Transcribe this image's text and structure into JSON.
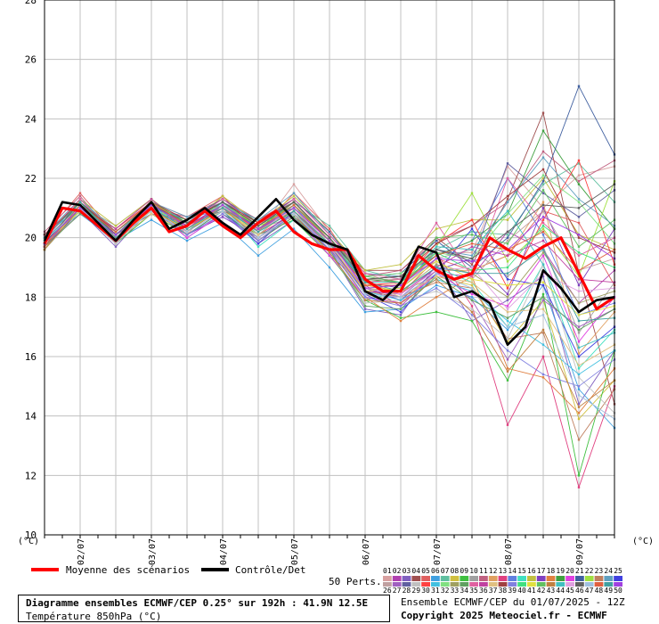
{
  "unit_label": "(°C)",
  "legend": {
    "mean_label": "Moyenne des scénarios",
    "control_label": "Contrôle/Det",
    "perts_label": "50 Perts.",
    "mean_color": "#ff0000",
    "control_color": "#000000"
  },
  "title": {
    "main": "Diagramme ensembles ECMWF/CEP 0.25° sur 192h : 41.9N 12.5E",
    "sub": "Température 850hPa (°C)"
  },
  "run_info": "Ensemble ECMWF/CEP du 01/07/2025 - 12Z",
  "copyright": "Copyright 2025 Meteociel.fr - ECMWF",
  "member_numbers_top": [
    "01",
    "02",
    "03",
    "04",
    "05",
    "06",
    "07",
    "08",
    "09",
    "10",
    "11",
    "12",
    "13",
    "14",
    "15",
    "16",
    "17",
    "18",
    "19",
    "20",
    "21",
    "22",
    "23",
    "24",
    "25"
  ],
  "member_numbers_bottom": [
    "26",
    "27",
    "28",
    "29",
    "30",
    "31",
    "32",
    "33",
    "34",
    "35",
    "36",
    "37",
    "38",
    "39",
    "40",
    "41",
    "42",
    "43",
    "44",
    "45",
    "46",
    "47",
    "48",
    "49",
    "50"
  ],
  "member_colors": [
    "#d8a0a0",
    "#b040b0",
    "#8060c0",
    "#a05050",
    "#e06060",
    "#40a0e0",
    "#60c0a0",
    "#d0c040",
    "#40c040",
    "#a0a0a0",
    "#c06080",
    "#e0a060",
    "#e04080",
    "#6080e0",
    "#40e0c0",
    "#c0c040",
    "#8040c0",
    "#e08040",
    "#40a040",
    "#e040e0",
    "#4060a0",
    "#a0e040",
    "#c08060",
    "#60a0c0",
    "#4040e0",
    "#c0a0a0",
    "#a060c0",
    "#6060a0",
    "#c0c0c0",
    "#ff4040",
    "#40c0e0",
    "#80e080",
    "#a0a060",
    "#60a060",
    "#e060a0",
    "#c040a0",
    "#e0c080",
    "#a04040",
    "#8080e0",
    "#40e080",
    "#e0e040",
    "#60c060",
    "#c08040",
    "#40c0c0",
    "#e0a0e0",
    "#606060",
    "#a0c0e0",
    "#e06040",
    "#40a0a0",
    "#a040e0"
  ],
  "chart_data": {
    "type": "line",
    "ylim": [
      10,
      28
    ],
    "yticks": [
      10,
      12,
      14,
      16,
      18,
      20,
      22,
      24,
      26,
      28
    ],
    "xlim_hours": [
      0,
      192
    ],
    "xtick_hours": [
      12,
      36,
      60,
      84,
      108,
      132,
      156,
      180
    ],
    "xtick_labels": [
      "02/07",
      "03/07",
      "04/07",
      "05/07",
      "06/07",
      "07/07",
      "08/07",
      "09/07"
    ],
    "grid": true,
    "mean": {
      "name": "Moyenne des scénarios",
      "x": [
        0,
        6,
        12,
        18,
        24,
        30,
        36,
        42,
        48,
        54,
        60,
        66,
        72,
        78,
        84,
        90,
        96,
        102,
        108,
        114,
        120,
        126,
        132,
        138,
        144,
        150,
        156,
        162,
        168,
        174,
        180,
        186,
        192
      ],
      "y": [
        19.8,
        21.0,
        20.9,
        20.4,
        19.9,
        20.5,
        21.0,
        20.2,
        20.4,
        20.9,
        20.4,
        20.0,
        20.5,
        20.9,
        20.2,
        19.8,
        19.6,
        19.6,
        18.6,
        18.2,
        18.2,
        19.4,
        18.9,
        18.6,
        18.8,
        20.0,
        19.6,
        19.3,
        19.7,
        20.0,
        18.8,
        17.6,
        18.0
      ]
    },
    "control": {
      "name": "Contrôle/Det",
      "x": [
        0,
        6,
        12,
        18,
        24,
        30,
        36,
        42,
        48,
        54,
        60,
        66,
        72,
        78,
        84,
        90,
        96,
        102,
        108,
        114,
        120,
        126,
        132,
        138,
        144,
        150,
        156,
        162,
        168,
        174,
        180,
        186,
        192
      ],
      "y": [
        19.9,
        21.2,
        21.1,
        20.5,
        19.9,
        20.6,
        21.2,
        20.3,
        20.6,
        21.0,
        20.5,
        20.1,
        20.7,
        21.3,
        20.6,
        20.1,
        19.8,
        19.6,
        18.2,
        17.9,
        18.5,
        19.7,
        19.5,
        18.0,
        18.2,
        17.8,
        16.4,
        17.0,
        18.9,
        18.3,
        17.5,
        17.9,
        18.0
      ]
    },
    "members_x": [
      0,
      12,
      24,
      36,
      48,
      60,
      72,
      84,
      96,
      108,
      120,
      132,
      144,
      156,
      168,
      180,
      192
    ],
    "members_note_visible": false,
    "members": [
      [
        19.6,
        21.1,
        19.8,
        21.3,
        20.1,
        21.4,
        20.2,
        21.8,
        20.2,
        18.8,
        18.4,
        19.5,
        19.5,
        22.4,
        21.0,
        22.1,
        22.4
      ],
      [
        19.8,
        21.0,
        20.0,
        20.9,
        20.4,
        21.0,
        19.9,
        20.8,
        19.4,
        18.4,
        17.7,
        18.8,
        18.7,
        20.2,
        19.6,
        17.8,
        18.9
      ],
      [
        20.0,
        20.9,
        19.7,
        21.0,
        20.0,
        20.8,
        19.8,
        20.6,
        19.6,
        17.6,
        17.4,
        19.1,
        17.2,
        17.9,
        18.7,
        14.4,
        16.2
      ],
      [
        19.7,
        21.3,
        20.2,
        21.1,
        20.6,
        21.2,
        20.5,
        21.0,
        19.9,
        18.9,
        18.9,
        20.0,
        19.1,
        21.3,
        24.2,
        18.8,
        14.4
      ],
      [
        20.1,
        21.5,
        20.1,
        21.2,
        20.7,
        21.4,
        20.2,
        21.5,
        20.3,
        18.5,
        18.1,
        19.3,
        18.9,
        19.4,
        20.9,
        20.5,
        18.4
      ],
      [
        19.9,
        20.8,
        19.9,
        20.6,
        19.9,
        20.5,
        19.4,
        20.3,
        19.0,
        17.5,
        17.6,
        18.4,
        18.0,
        16.9,
        18.4,
        14.9,
        13.6
      ],
      [
        19.8,
        21.2,
        20.3,
        21.2,
        20.5,
        21.2,
        20.6,
        21.2,
        20.4,
        18.9,
        18.6,
        19.6,
        20.2,
        20.1,
        21.8,
        22.5,
        21.2
      ],
      [
        20.0,
        21.0,
        20.1,
        21.1,
        20.3,
        20.9,
        20.3,
        21.0,
        20.0,
        18.4,
        18.2,
        18.7,
        18.4,
        16.5,
        17.9,
        13.9,
        15.2
      ],
      [
        19.6,
        20.9,
        19.8,
        20.8,
        20.1,
        20.8,
        20.1,
        20.6,
        19.4,
        17.9,
        17.3,
        17.5,
        17.2,
        15.2,
        18.1,
        12.0,
        16.2
      ],
      [
        19.9,
        21.1,
        20.4,
        21.3,
        20.4,
        21.0,
        20.3,
        20.7,
        19.8,
        18.2,
        18.3,
        19.3,
        19.6,
        18.7,
        19.7,
        16.8,
        18.5
      ],
      [
        20.2,
        21.4,
        20.0,
        21.0,
        20.7,
        21.3,
        20.6,
        21.3,
        20.1,
        18.7,
        18.9,
        19.9,
        20.4,
        21.2,
        22.9,
        21.9,
        22.6
      ],
      [
        19.7,
        21.0,
        20.1,
        20.8,
        20.2,
        21.1,
        20.2,
        21.1,
        19.9,
        18.1,
        17.8,
        18.9,
        18.9,
        19.4,
        21.2,
        16.1,
        17.5
      ],
      [
        20.0,
        21.2,
        19.9,
        21.2,
        20.3,
        21.2,
        20.1,
        20.8,
        19.6,
        18.5,
        18.6,
        19.5,
        17.7,
        13.7,
        16.0,
        11.6,
        15.0
      ],
      [
        19.8,
        21.1,
        20.2,
        21.1,
        20.6,
        21.0,
        20.4,
        21.2,
        20.0,
        18.6,
        18.7,
        19.4,
        19.9,
        22.0,
        20.1,
        17.4,
        17.8
      ],
      [
        19.9,
        20.9,
        20.0,
        20.9,
        20.2,
        21.1,
        19.7,
        20.6,
        19.5,
        17.9,
        18.2,
        19.0,
        18.5,
        17.0,
        19.1,
        15.6,
        16.9
      ],
      [
        19.6,
        21.3,
        20.4,
        21.3,
        20.4,
        21.4,
        20.5,
        21.4,
        20.2,
        18.9,
        19.1,
        20.3,
        20.6,
        20.6,
        22.0,
        20.1,
        19.6
      ],
      [
        20.1,
        21.0,
        19.8,
        21.0,
        20.1,
        20.7,
        20.0,
        20.9,
        19.7,
        18.3,
        17.9,
        18.9,
        19.3,
        18.1,
        21.0,
        18.4,
        20.3
      ],
      [
        19.8,
        21.2,
        20.2,
        21.2,
        20.4,
        21.0,
        20.2,
        21.0,
        19.7,
        18.0,
        17.2,
        18.0,
        18.7,
        15.6,
        15.3,
        14.1,
        15.6
      ],
      [
        19.9,
        21.1,
        20.0,
        20.9,
        20.5,
        21.2,
        20.3,
        21.2,
        20.0,
        18.6,
        18.5,
        19.4,
        19.9,
        20.8,
        23.6,
        21.8,
        20.3
      ],
      [
        19.7,
        20.8,
        20.1,
        21.1,
        20.0,
        20.8,
        19.9,
        20.7,
        19.4,
        18.0,
        17.8,
        18.8,
        18.1,
        17.7,
        19.4,
        16.5,
        18.0
      ],
      [
        20.0,
        21.2,
        19.9,
        21.0,
        20.6,
        21.3,
        20.5,
        21.3,
        20.2,
        18.7,
        18.8,
        19.9,
        19.0,
        20.0,
        21.9,
        25.1,
        22.8
      ],
      [
        19.8,
        21.0,
        20.3,
        21.3,
        20.3,
        21.1,
        20.4,
        20.8,
        19.9,
        18.4,
        18.4,
        19.7,
        21.5,
        19.2,
        20.3,
        18.7,
        21.9
      ],
      [
        19.9,
        21.1,
        20.1,
        20.9,
        20.2,
        21.0,
        20.1,
        21.0,
        19.7,
        18.2,
        18.0,
        18.5,
        18.3,
        16.6,
        16.8,
        13.2,
        14.9
      ],
      [
        20.1,
        21.3,
        20.2,
        21.2,
        20.7,
        21.2,
        20.6,
        21.5,
        20.1,
        18.8,
        18.7,
        19.6,
        19.4,
        21.2,
        22.7,
        21.3,
        20.4
      ],
      [
        19.7,
        20.9,
        19.9,
        21.0,
        20.1,
        20.9,
        19.8,
        20.9,
        19.8,
        18.1,
        17.5,
        18.8,
        20.3,
        18.6,
        18.4,
        16.0,
        17.0
      ],
      [
        19.9,
        21.1,
        20.0,
        21.1,
        20.4,
        21.0,
        20.3,
        21.1,
        19.9,
        18.6,
        18.6,
        19.2,
        18.6,
        19.9,
        20.9,
        18.9,
        19.3
      ],
      [
        19.8,
        21.0,
        20.2,
        21.2,
        20.2,
        21.2,
        20.2,
        20.9,
        19.6,
        18.3,
        18.0,
        19.0,
        17.9,
        15.9,
        17.9,
        17.0,
        17.6
      ],
      [
        20.0,
        21.2,
        20.1,
        20.8,
        20.5,
        20.9,
        20.4,
        21.2,
        20.0,
        18.5,
        18.3,
        19.6,
        19.2,
        22.5,
        21.5,
        20.7,
        21.6
      ],
      [
        19.6,
        20.9,
        19.8,
        21.0,
        20.3,
        21.1,
        20.0,
        20.7,
        19.5,
        17.8,
        17.9,
        18.2,
        17.6,
        16.6,
        19.1,
        15.3,
        14.1
      ],
      [
        19.9,
        21.1,
        20.3,
        21.2,
        20.4,
        21.0,
        20.3,
        21.0,
        19.9,
        18.4,
        18.5,
        19.8,
        20.6,
        18.3,
        20.6,
        22.6,
        19.1
      ],
      [
        20.1,
        21.0,
        19.9,
        21.1,
        20.2,
        21.2,
        20.1,
        21.1,
        19.7,
        18.2,
        17.9,
        18.6,
        18.2,
        17.2,
        16.4,
        15.4,
        16.2
      ],
      [
        19.8,
        21.2,
        20.0,
        20.9,
        20.6,
        21.1,
        20.5,
        20.8,
        19.8,
        18.7,
        18.8,
        19.5,
        19.3,
        20.8,
        22.1,
        21.2,
        19.8
      ],
      [
        19.9,
        21.1,
        20.2,
        21.2,
        20.3,
        21.0,
        20.2,
        21.2,
        19.9,
        18.3,
        18.2,
        19.1,
        18.8,
        18.0,
        19.5,
        17.8,
        18.2
      ],
      [
        19.7,
        20.8,
        20.1,
        21.0,
        20.1,
        20.9,
        19.9,
        20.7,
        19.6,
        17.7,
        17.6,
        18.7,
        17.9,
        17.3,
        18.0,
        16.9,
        17.6
      ],
      [
        20.0,
        21.3,
        20.0,
        21.1,
        20.5,
        21.3,
        20.4,
        21.3,
        20.1,
        18.8,
        18.6,
        20.5,
        18.7,
        22.0,
        20.5,
        19.4,
        20.0
      ],
      [
        19.8,
        21.0,
        20.3,
        21.3,
        20.3,
        21.1,
        20.3,
        20.9,
        19.7,
        18.2,
        18.1,
        19.0,
        19.7,
        19.4,
        19.9,
        18.6,
        18.5
      ],
      [
        19.9,
        21.1,
        19.9,
        20.8,
        20.2,
        21.0,
        20.1,
        21.0,
        19.8,
        18.5,
        18.0,
        18.7,
        18.5,
        17.5,
        17.6,
        15.7,
        16.4
      ],
      [
        20.1,
        21.2,
        20.2,
        21.2,
        20.6,
        21.2,
        20.5,
        21.2,
        20.0,
        18.6,
        18.7,
        19.8,
        20.4,
        21.4,
        22.3,
        20.0,
        19.5
      ],
      [
        19.7,
        21.0,
        20.0,
        21.0,
        20.1,
        20.8,
        19.9,
        20.8,
        19.6,
        18.0,
        17.7,
        18.3,
        17.4,
        16.2,
        15.4,
        15.0,
        15.9
      ],
      [
        19.9,
        21.1,
        20.1,
        21.1,
        20.4,
        21.1,
        20.3,
        21.1,
        19.9,
        18.4,
        18.4,
        19.5,
        18.9,
        19.0,
        20.4,
        19.5,
        19.0
      ],
      [
        19.8,
        20.9,
        20.0,
        20.9,
        20.3,
        20.9,
        20.2,
        20.9,
        19.8,
        18.2,
        18.3,
        19.2,
        18.6,
        18.4,
        18.5,
        17.4,
        17.7
      ],
      [
        20.0,
        21.2,
        20.1,
        21.2,
        20.5,
        21.2,
        20.4,
        21.1,
        20.0,
        18.7,
        18.5,
        20.0,
        20.1,
        19.8,
        21.6,
        19.7,
        20.6
      ],
      [
        19.6,
        21.0,
        19.9,
        21.0,
        20.2,
        21.0,
        20.0,
        20.8,
        19.5,
        17.9,
        17.8,
        18.6,
        17.5,
        15.5,
        16.9,
        14.3,
        15.2
      ],
      [
        19.9,
        21.1,
        20.2,
        21.1,
        20.4,
        21.1,
        20.3,
        21.0,
        19.9,
        18.5,
        18.5,
        19.7,
        19.6,
        20.9,
        19.1,
        16.3,
        16.8
      ],
      [
        20.0,
        21.0,
        20.0,
        21.0,
        20.3,
        21.0,
        20.2,
        21.0,
        19.8,
        18.3,
        18.1,
        18.9,
        19.0,
        17.6,
        18.8,
        18.2,
        18.3
      ],
      [
        19.8,
        21.2,
        20.1,
        21.1,
        20.5,
        21.2,
        20.4,
        21.2,
        20.0,
        18.6,
        18.7,
        19.6,
        19.3,
        20.2,
        21.1,
        21.0,
        21.8
      ],
      [
        19.9,
        21.0,
        19.9,
        20.9,
        20.2,
        20.9,
        20.0,
        20.8,
        19.7,
        18.1,
        18.0,
        18.8,
        18.3,
        17.0,
        17.4,
        14.7,
        13.9
      ],
      [
        19.7,
        21.1,
        20.2,
        21.2,
        20.4,
        21.1,
        20.3,
        21.1,
        19.9,
        18.4,
        18.4,
        19.4,
        19.8,
        19.6,
        20.2,
        18.9,
        19.6
      ],
      [
        20.0,
        21.2,
        20.0,
        21.0,
        20.3,
        21.0,
        20.2,
        20.9,
        19.8,
        18.5,
        18.2,
        19.0,
        18.8,
        18.8,
        19.6,
        17.2,
        17.3
      ],
      [
        19.8,
        21.0,
        20.1,
        21.1,
        20.4,
        21.1,
        20.3,
        21.0,
        19.9,
        18.3,
        18.4,
        19.3,
        19.2,
        19.6,
        20.7,
        20.1,
        19.3
      ]
    ]
  }
}
